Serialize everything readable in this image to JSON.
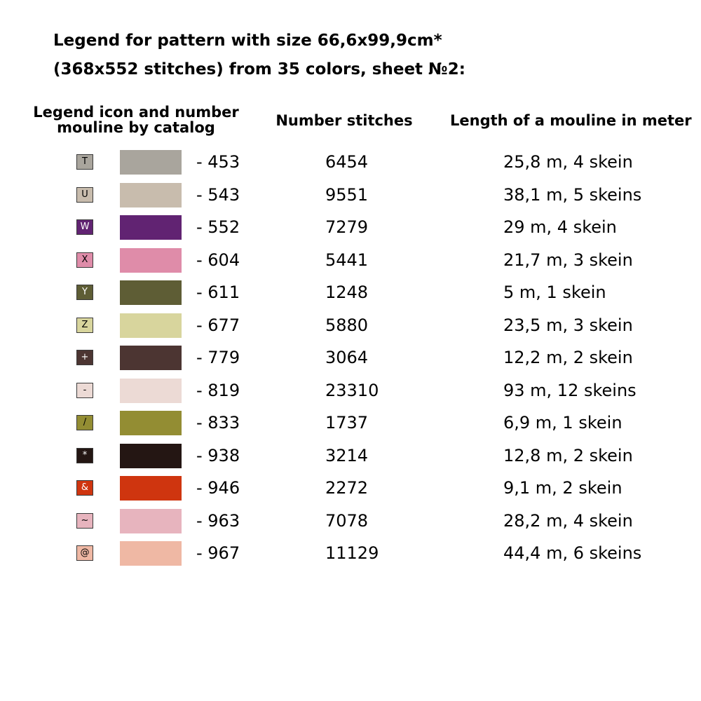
{
  "title": {
    "line1": "Legend for pattern with size 66,6x99,9cm*",
    "line2": "(368x552 stitches) from 35 colors, sheet №2:"
  },
  "headers": {
    "legend_line1": "Legend icon and number",
    "legend_line2": "mouline by catalog",
    "stitches": "Number stitches",
    "length": "Length of a mouline in meter"
  },
  "rows": [
    {
      "symbol": "T",
      "color": "#a9a59d",
      "symbol_color": "#000000",
      "number": "- 453",
      "stitches": "6454",
      "length": "25,8 m, 4 skein"
    },
    {
      "symbol": "U",
      "color": "#c8bcad",
      "symbol_color": "#000000",
      "number": "- 543",
      "stitches": "9551",
      "length": "38,1 m, 5 skeins"
    },
    {
      "symbol": "W",
      "color": "#612372",
      "symbol_color": "#ffffff",
      "number": "- 552",
      "stitches": "7279",
      "length": "29 m, 4 skein"
    },
    {
      "symbol": "X",
      "color": "#df8ca9",
      "symbol_color": "#000000",
      "number": "- 604",
      "stitches": "5441",
      "length": "21,7 m, 3 skein"
    },
    {
      "symbol": "Y",
      "color": "#5e5d35",
      "symbol_color": "#ffffff",
      "number": "- 611",
      "stitches": "1248",
      "length": "5 m, 1 skein"
    },
    {
      "symbol": "Z",
      "color": "#d8d59d",
      "symbol_color": "#000000",
      "number": "- 677",
      "stitches": "5880",
      "length": "23,5 m, 3 skein"
    },
    {
      "symbol": "+",
      "color": "#4c3532",
      "symbol_color": "#ffffff",
      "number": "- 779",
      "stitches": "3064",
      "length": "12,2 m, 2 skein"
    },
    {
      "symbol": "-",
      "color": "#ecdad5",
      "symbol_color": "#000000",
      "number": "- 819",
      "stitches": "23310",
      "length": "93 m, 12 skeins"
    },
    {
      "symbol": "/",
      "color": "#938d33",
      "symbol_color": "#000000",
      "number": "- 833",
      "stitches": "1737",
      "length": "6,9 m, 1 skein"
    },
    {
      "symbol": "*",
      "color": "#241613",
      "symbol_color": "#ffffff",
      "number": "- 938",
      "stitches": "3214",
      "length": "12,8 m, 2 skein"
    },
    {
      "symbol": "&",
      "color": "#cf350f",
      "symbol_color": "#ffffff",
      "number": "- 946",
      "stitches": "2272",
      "length": "9,1 m, 2 skein"
    },
    {
      "symbol": "~",
      "color": "#e7b4be",
      "symbol_color": "#000000",
      "number": "- 963",
      "stitches": "7078",
      "length": "28,2 m, 4 skein"
    },
    {
      "symbol": "@",
      "color": "#efb8a4",
      "symbol_color": "#000000",
      "number": "- 967",
      "stitches": "11129",
      "length": "44,4 m, 6 skeins"
    }
  ]
}
